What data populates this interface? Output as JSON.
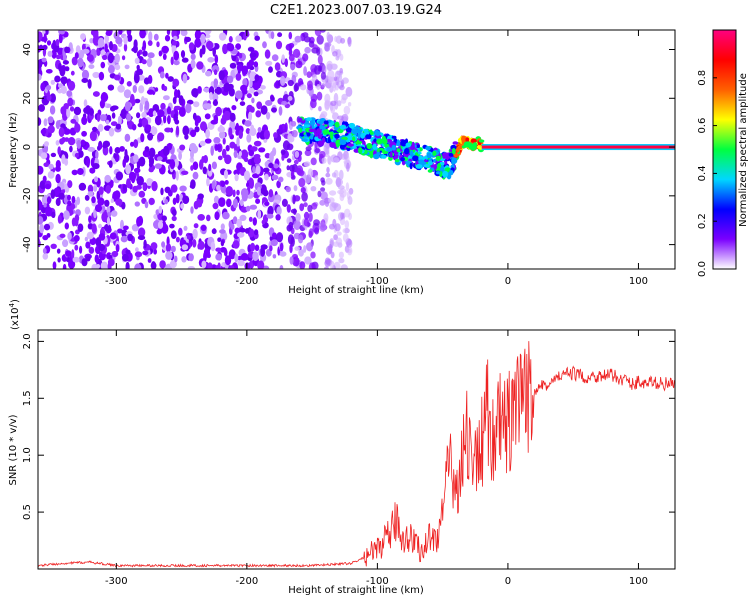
{
  "title": "C2E1.2023.007.03.19.G24",
  "chart_data": [
    {
      "type": "heatmap",
      "xlabel": "Height of straight line (km)",
      "ylabel": "Frequency (Hz)",
      "xlim": [
        -360,
        128
      ],
      "ylim": [
        -50,
        48
      ],
      "xticks": [
        -300,
        -200,
        -100,
        0,
        100
      ],
      "yticks": [
        -40,
        -20,
        0,
        20,
        40
      ],
      "colorbar": {
        "label": "Normalized spectral amplitude",
        "range": [
          0,
          1
        ],
        "ticks": [
          "0.0",
          "0.2",
          "0.4",
          "0.6",
          "0.8"
        ],
        "colors": [
          "#ffffff",
          "#7a00ff",
          "#0000ff",
          "#00d7ff",
          "#00ff40",
          "#ffff00",
          "#ff6000",
          "#ff0000",
          "#ff0080"
        ]
      },
      "regions": [
        {
          "description": "noise",
          "x_range": [
            -360,
            -120
          ],
          "y_range": [
            -50,
            48
          ]
        },
        {
          "description": "signal band",
          "x_range": [
            -160,
            128
          ],
          "y_center": 0
        }
      ],
      "signal_trace": [
        {
          "x": -160,
          "y": 7
        },
        {
          "x": -140,
          "y": 6
        },
        {
          "x": -120,
          "y": 4
        },
        {
          "x": -100,
          "y": 1
        },
        {
          "x": -80,
          "y": -2
        },
        {
          "x": -60,
          "y": -5
        },
        {
          "x": -45,
          "y": -8
        },
        {
          "x": -35,
          "y": 2
        },
        {
          "x": -20,
          "y": 1
        },
        {
          "x": 0,
          "y": 1
        },
        {
          "x": 20,
          "y": 0
        },
        {
          "x": 128,
          "y": 0
        }
      ]
    },
    {
      "type": "line",
      "xlabel": "Height of straight line (km)",
      "ylabel": "SNR (10 * v/v)",
      "yscale_label": "(x10",
      "yscale_exp": "4",
      "yscale_close": ")",
      "xlim": [
        -360,
        128
      ],
      "ylim": [
        0,
        2.1
      ],
      "xticks": [
        -300,
        -200,
        -100,
        0,
        100
      ],
      "yticks": [
        "0.5",
        "1.0",
        "1.5",
        "2.0"
      ],
      "color": "#ee2222",
      "x": [
        -360,
        -340,
        -320,
        -300,
        -250,
        -200,
        -150,
        -120,
        -110,
        -100,
        -90,
        -85,
        -80,
        -75,
        -70,
        -65,
        -60,
        -55,
        -50,
        -45,
        -40,
        -35,
        -30,
        -25,
        -20,
        -15,
        -10,
        -5,
        0,
        5,
        10,
        15,
        20,
        25,
        30,
        40,
        50,
        60,
        70,
        80,
        90,
        95,
        100,
        105,
        110,
        128
      ],
      "y": [
        0.03,
        0.05,
        0.06,
        0.03,
        0.03,
        0.03,
        0.03,
        0.05,
        0.1,
        0.18,
        0.3,
        0.45,
        0.25,
        0.3,
        0.2,
        0.15,
        0.3,
        0.25,
        0.5,
        0.9,
        0.7,
        1.0,
        1.2,
        0.9,
        1.1,
        1.4,
        1.1,
        1.3,
        1.25,
        1.35,
        1.4,
        1.5,
        1.55,
        1.65,
        1.6,
        1.7,
        1.72,
        1.68,
        1.7,
        1.7,
        1.66,
        1.62,
        1.65,
        1.62,
        1.64,
        1.62
      ]
    }
  ]
}
